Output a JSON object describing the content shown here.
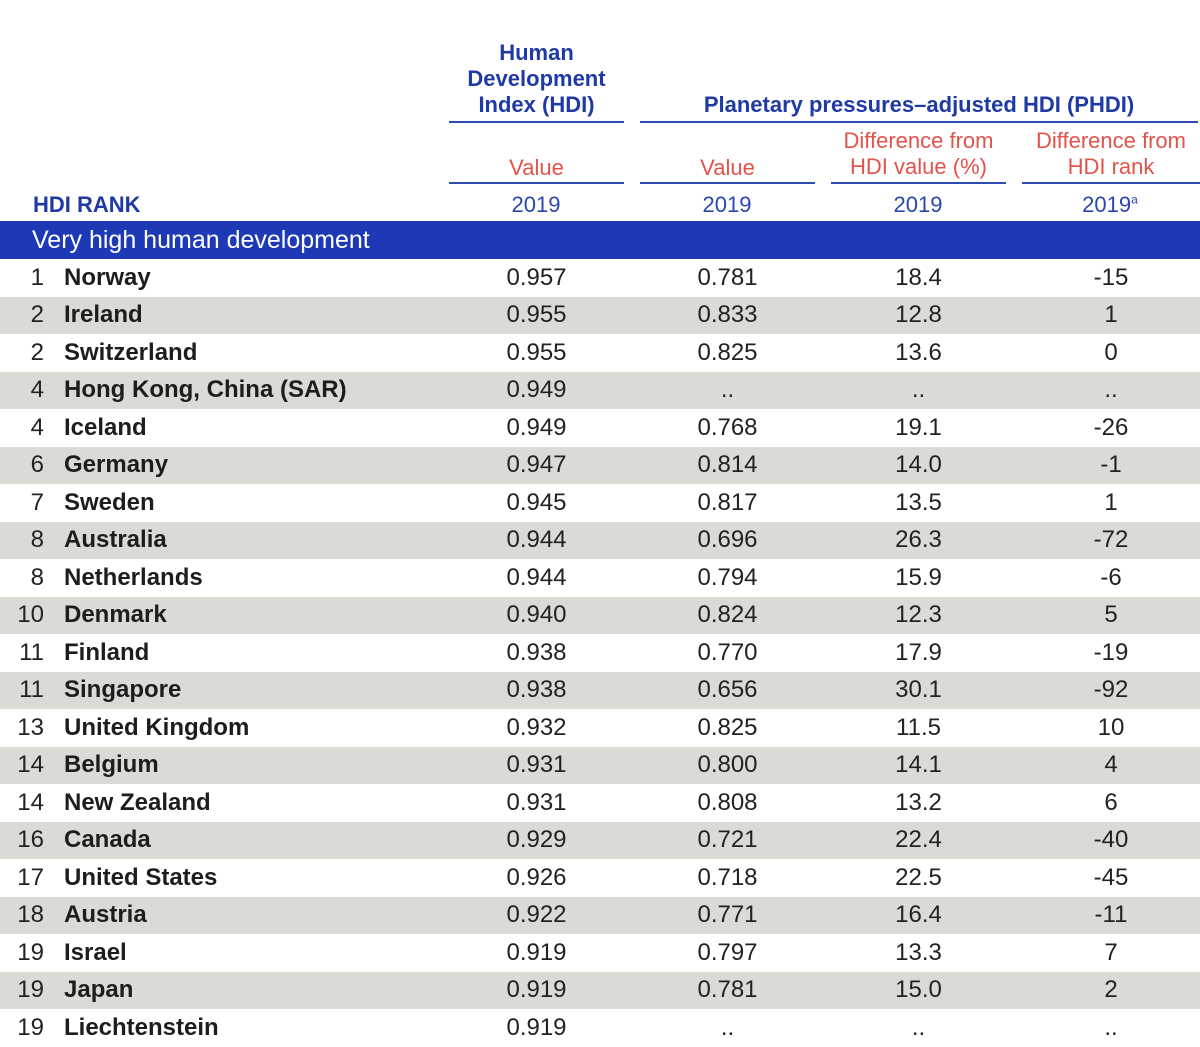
{
  "header": {
    "hdi_title_line1": "Human",
    "hdi_title_line2": "Development",
    "hdi_title_line3": "Index (HDI)",
    "phdi_title": "Planetary pressures–adjusted HDI (PHDI)",
    "col_hdi_value": "Value",
    "col_phdi_value": "Value",
    "col_diff_value_line1": "Difference from",
    "col_diff_value_line2": "HDI value (%)",
    "col_diff_rank_line1": "Difference from",
    "col_diff_rank_line2": "HDI rank",
    "hdi_rank_label": "HDI RANK",
    "year_hdi": "2019",
    "year_phdi": "2019",
    "year_diff_value": "2019",
    "year_diff_rank": "2019",
    "year_diff_rank_note": "a"
  },
  "section_title": "Very high human development",
  "rows": [
    {
      "rank": "1",
      "country": "Norway",
      "hdi": "0.957",
      "phdi": "0.781",
      "diff_value": "18.4",
      "diff_rank": "-15"
    },
    {
      "rank": "2",
      "country": "Ireland",
      "hdi": "0.955",
      "phdi": "0.833",
      "diff_value": "12.8",
      "diff_rank": "1"
    },
    {
      "rank": "2",
      "country": "Switzerland",
      "hdi": "0.955",
      "phdi": "0.825",
      "diff_value": "13.6",
      "diff_rank": "0"
    },
    {
      "rank": "4",
      "country": "Hong Kong, China (SAR)",
      "hdi": "0.949",
      "phdi": "..",
      "diff_value": "..",
      "diff_rank": ".."
    },
    {
      "rank": "4",
      "country": "Iceland",
      "hdi": "0.949",
      "phdi": "0.768",
      "diff_value": "19.1",
      "diff_rank": "-26"
    },
    {
      "rank": "6",
      "country": "Germany",
      "hdi": "0.947",
      "phdi": "0.814",
      "diff_value": "14.0",
      "diff_rank": "-1"
    },
    {
      "rank": "7",
      "country": "Sweden",
      "hdi": "0.945",
      "phdi": "0.817",
      "diff_value": "13.5",
      "diff_rank": "1"
    },
    {
      "rank": "8",
      "country": "Australia",
      "hdi": "0.944",
      "phdi": "0.696",
      "diff_value": "26.3",
      "diff_rank": "-72"
    },
    {
      "rank": "8",
      "country": "Netherlands",
      "hdi": "0.944",
      "phdi": "0.794",
      "diff_value": "15.9",
      "diff_rank": "-6"
    },
    {
      "rank": "10",
      "country": "Denmark",
      "hdi": "0.940",
      "phdi": "0.824",
      "diff_value": "12.3",
      "diff_rank": "5"
    },
    {
      "rank": "11",
      "country": "Finland",
      "hdi": "0.938",
      "phdi": "0.770",
      "diff_value": "17.9",
      "diff_rank": "-19"
    },
    {
      "rank": "11",
      "country": "Singapore",
      "hdi": "0.938",
      "phdi": "0.656",
      "diff_value": "30.1",
      "diff_rank": "-92"
    },
    {
      "rank": "13",
      "country": "United Kingdom",
      "hdi": "0.932",
      "phdi": "0.825",
      "diff_value": "11.5",
      "diff_rank": "10"
    },
    {
      "rank": "14",
      "country": "Belgium",
      "hdi": "0.931",
      "phdi": "0.800",
      "diff_value": "14.1",
      "diff_rank": "4"
    },
    {
      "rank": "14",
      "country": "New Zealand",
      "hdi": "0.931",
      "phdi": "0.808",
      "diff_value": "13.2",
      "diff_rank": "6"
    },
    {
      "rank": "16",
      "country": "Canada",
      "hdi": "0.929",
      "phdi": "0.721",
      "diff_value": "22.4",
      "diff_rank": "-40"
    },
    {
      "rank": "17",
      "country": "United States",
      "hdi": "0.926",
      "phdi": "0.718",
      "diff_value": "22.5",
      "diff_rank": "-45"
    },
    {
      "rank": "18",
      "country": "Austria",
      "hdi": "0.922",
      "phdi": "0.771",
      "diff_value": "16.4",
      "diff_rank": "-11"
    },
    {
      "rank": "19",
      "country": "Israel",
      "hdi": "0.919",
      "phdi": "0.797",
      "diff_value": "13.3",
      "diff_rank": "7"
    },
    {
      "rank": "19",
      "country": "Japan",
      "hdi": "0.919",
      "phdi": "0.781",
      "diff_value": "15.0",
      "diff_rank": "2"
    },
    {
      "rank": "19",
      "country": "Liechtenstein",
      "hdi": "0.919",
      "phdi": "..",
      "diff_value": "..",
      "diff_rank": ".."
    }
  ],
  "colors": {
    "header_blue": "#1f3aa5",
    "header_red": "#e2534a",
    "band_blue": "#1d39b5",
    "row_shade": "#dcdad5"
  }
}
